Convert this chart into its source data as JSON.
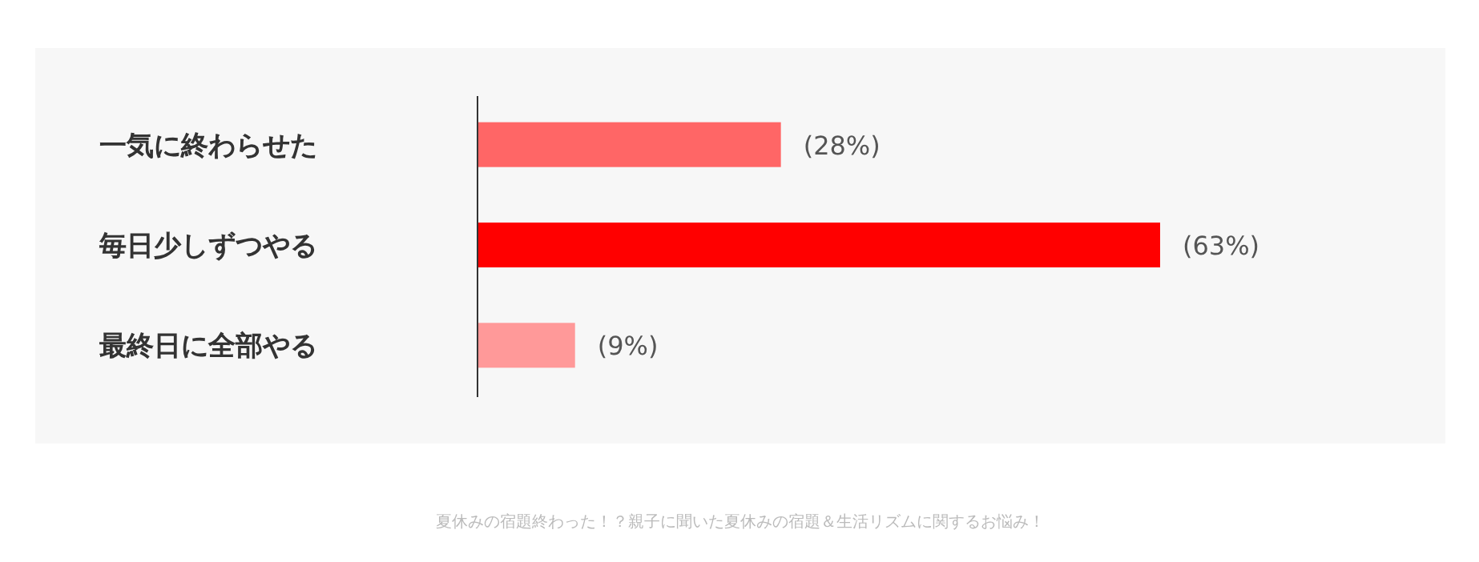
{
  "chart_data": {
    "type": "bar",
    "orientation": "horizontal",
    "categories": [
      "一気に終わらせた",
      "毎日少しずつやる",
      "最終日に全部やる"
    ],
    "values": [
      28,
      63,
      9
    ],
    "colors": [
      "#ff6666",
      "#ff0000",
      "#ff9999"
    ],
    "value_labels": [
      "(28%)",
      "(63%)",
      "(9%)"
    ],
    "annotations": [
      "夏休みの宿題終わった！？親子に聞いた夏休みの宿題＆生活リズムに関するお悩み！"
    ]
  }
}
